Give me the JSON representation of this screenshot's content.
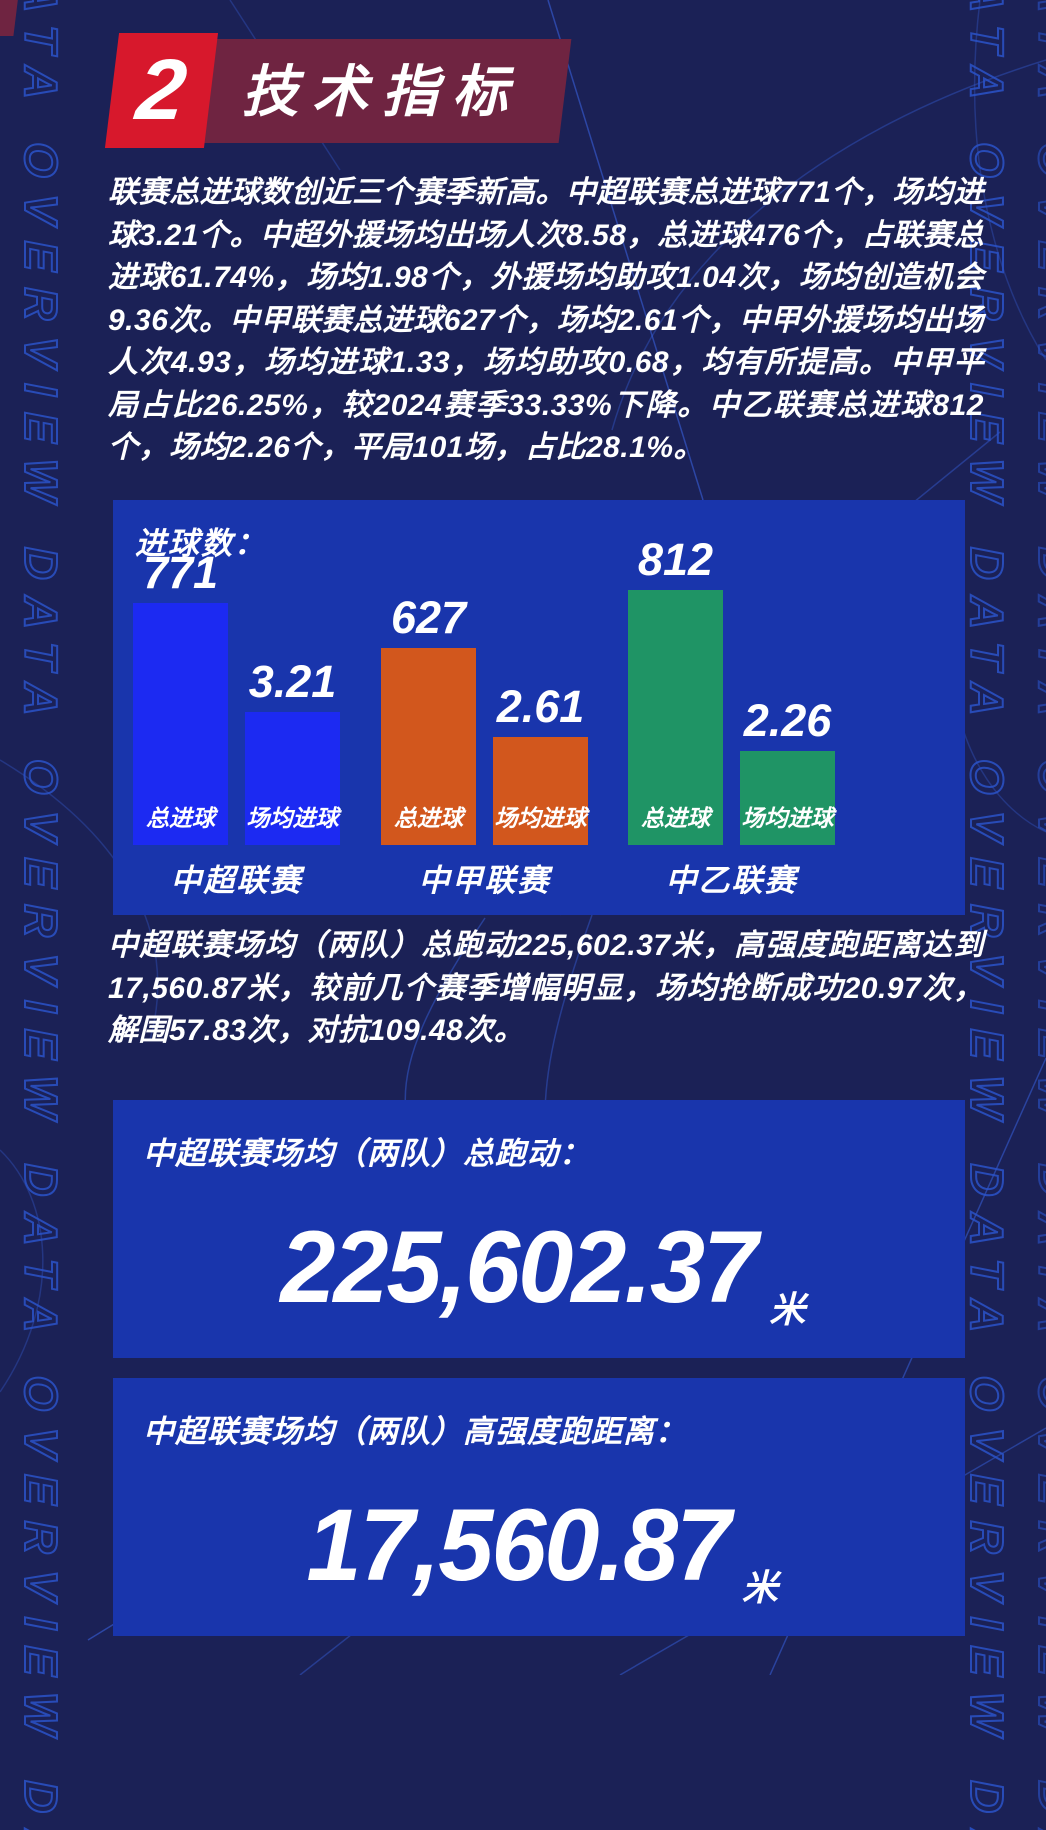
{
  "header": {
    "section_number": "2",
    "section_title": "技术指标"
  },
  "watermark": {
    "text": "DATA OVERVIEW"
  },
  "paragraphs": {
    "p1": "联赛总进球数创近三个赛季新高。中超联赛总进球771个，场均进球3.21个。中超外援场均出场人次8.58，总进球476个，占联赛总进球61.74%，场均1.98个，外援场均助攻1.04次，场均创造机会9.36次。中甲联赛总进球627个，场均2.61个，中甲外援场均出场人次4.93，场均进球1.33，场均助攻0.68，均有所提高。中甲平局占比26.25%，较2024赛季33.33%下降。中乙联赛总进球812个，场均2.26个，平局101场，占比28.1%。",
    "p2": "中超联赛场均（两队）总跑动225,602.37米，高强度跑距离达到17,560.87米，较前几个赛季增幅明显，场均抢断成功20.97次，解围57.83次，对抗109.48次。"
  },
  "chart_data": {
    "type": "bar",
    "title": "进球数：",
    "categories": [
      "中超联赛",
      "中甲联赛",
      "中乙联赛"
    ],
    "series": [
      {
        "name": "总进球",
        "values": [
          771,
          627,
          812
        ]
      },
      {
        "name": "场均进球",
        "values": [
          3.21,
          2.61,
          2.26
        ]
      }
    ],
    "colors": [
      "#1c2af2",
      "#d2571d",
      "#1f9465"
    ],
    "value_labels_shown": true,
    "grid": false,
    "legend_position": "labels-inside-bars"
  },
  "stat_boxes": [
    {
      "title": "中超联赛场均（两队）总跑动：",
      "value": "225,602.37",
      "unit": "米"
    },
    {
      "title": "中超联赛场均（两队）高强度跑距离：",
      "value": "17,560.87",
      "unit": "米"
    }
  ],
  "colors": {
    "background": "#1b2156",
    "panel_blue": "#1935ac",
    "badge_red": "#d7182c",
    "banner_maroon": "#6f2441",
    "watermark_outline": "#2b53c9",
    "deco_line": "#3a66e8",
    "text": "#ffffff"
  }
}
